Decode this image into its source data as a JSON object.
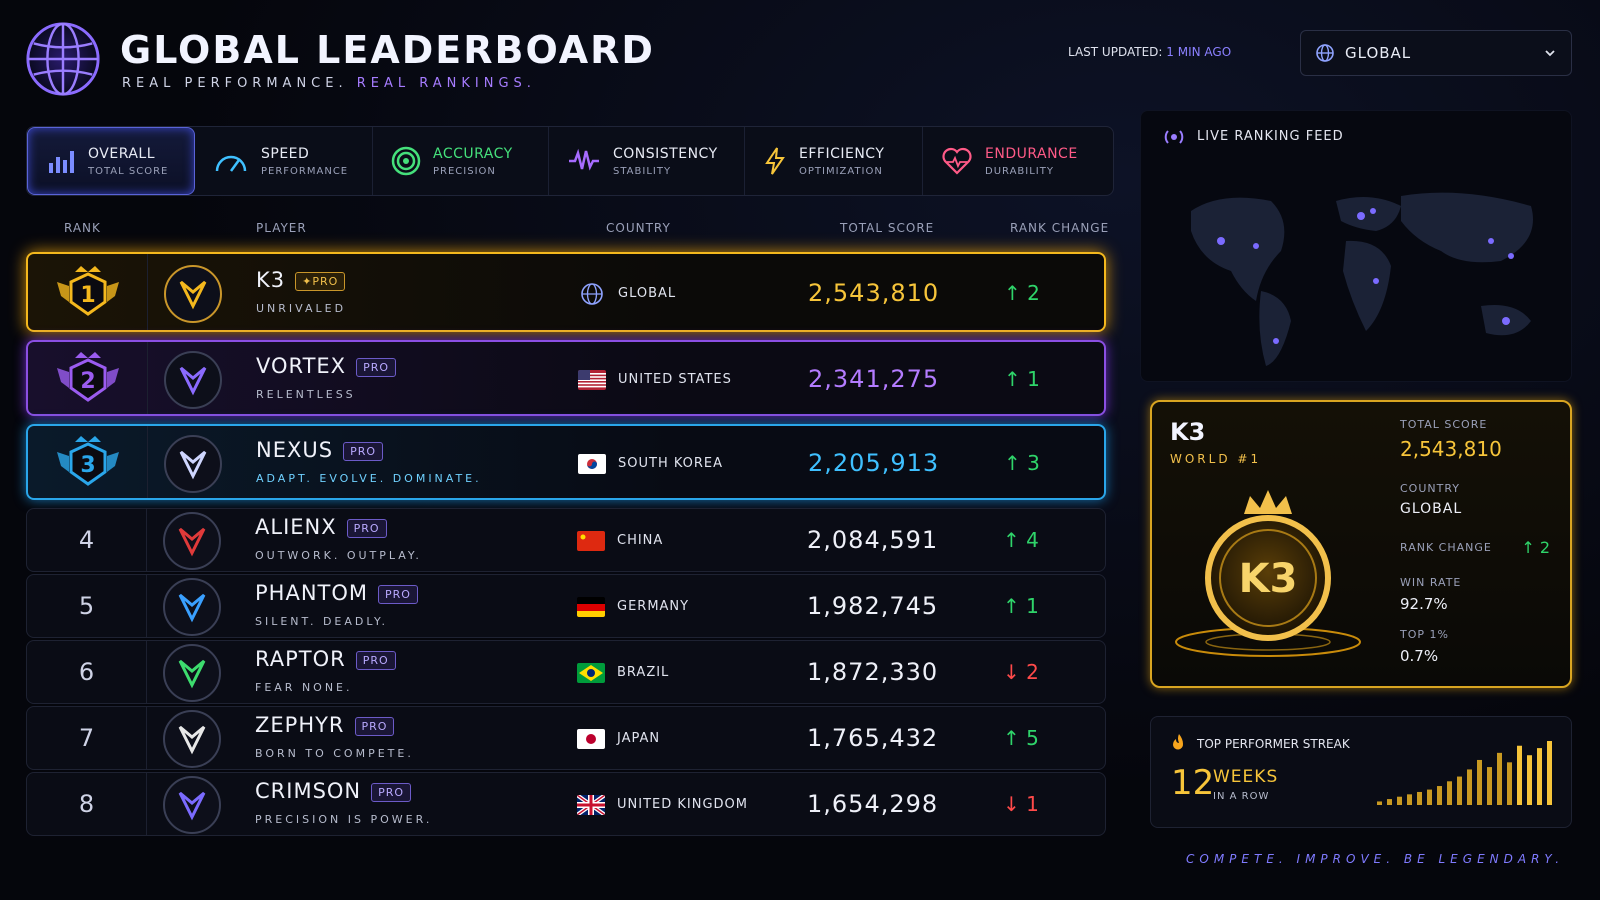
{
  "header": {
    "title": "GLOBAL LEADERBOARD",
    "subtitle_a": "REAL PERFORMANCE.",
    "subtitle_b": "REAL RANKINGS.",
    "updated_label": "LAST UPDATED:",
    "updated_value": "1 MIN AGO",
    "region": "GLOBAL"
  },
  "tabs": [
    {
      "name": "OVERALL",
      "sub": "TOTAL SCORE",
      "color": "#ffffff"
    },
    {
      "name": "SPEED",
      "sub": "PERFORMANCE",
      "color": "#ffffff"
    },
    {
      "name": "ACCURACY",
      "sub": "PRECISION",
      "color": "#45e07b"
    },
    {
      "name": "CONSISTENCY",
      "sub": "STABILITY",
      "color": "#ffffff"
    },
    {
      "name": "EFFICIENCY",
      "sub": "OPTIMIZATION",
      "color": "#ffffff"
    },
    {
      "name": "ENDURANCE",
      "sub": "DURABILITY",
      "color": "#ff5a87"
    }
  ],
  "columns": {
    "rank": "RANK",
    "player": "PLAYER",
    "country": "COUNTRY",
    "score": "TOTAL SCORE",
    "change": "RANK CHANGE"
  },
  "players": [
    {
      "rank": "1",
      "name": "K3",
      "pro": "✦PRO",
      "tag": "UNRIVALED",
      "country": "GLOBAL",
      "score": "2,543,810",
      "dir": "up",
      "change": "2",
      "score_color": "#f7c53a"
    },
    {
      "rank": "2",
      "name": "VORTEX",
      "pro": "PRO",
      "tag": "RELENTLESS",
      "country": "UNITED STATES",
      "score": "2,341,275",
      "dir": "up",
      "change": "1",
      "score_color": "#b47cff"
    },
    {
      "rank": "3",
      "name": "NEXUS",
      "pro": "PRO",
      "tag": "ADAPT. EVOLVE. DOMINATE.",
      "country": "SOUTH KOREA",
      "score": "2,205,913",
      "dir": "up",
      "change": "3",
      "score_color": "#3fc0ff"
    },
    {
      "rank": "4",
      "name": "ALIENX",
      "pro": "PRO",
      "tag": "OUTWORK. OUTPLAY.",
      "country": "CHINA",
      "score": "2,084,591",
      "dir": "up",
      "change": "4",
      "score_color": "#eef0f8"
    },
    {
      "rank": "5",
      "name": "PHANTOM",
      "pro": "PRO",
      "tag": "SILENT. DEADLY.",
      "country": "GERMANY",
      "score": "1,982,745",
      "dir": "up",
      "change": "1",
      "score_color": "#eef0f8"
    },
    {
      "rank": "6",
      "name": "RAPTOR",
      "pro": "PRO",
      "tag": "FEAR NONE.",
      "country": "BRAZIL",
      "score": "1,872,330",
      "dir": "down",
      "change": "2",
      "score_color": "#eef0f8"
    },
    {
      "rank": "7",
      "name": "ZEPHYR",
      "pro": "PRO",
      "tag": "BORN TO COMPETE.",
      "country": "JAPAN",
      "score": "1,765,432",
      "dir": "up",
      "change": "5",
      "score_color": "#eef0f8"
    },
    {
      "rank": "8",
      "name": "CRIMSON",
      "pro": "PRO",
      "tag": "PRECISION IS POWER.",
      "country": "UNITED KINGDOM",
      "score": "1,654,298",
      "dir": "down",
      "change": "1",
      "score_color": "#eef0f8"
    }
  ],
  "feed": {
    "title": "LIVE RANKING FEED"
  },
  "card": {
    "name": "K3",
    "world": "WORLD #1",
    "badge": "K3",
    "total_label": "TOTAL SCORE",
    "total": "2,543,810",
    "country_label": "COUNTRY",
    "country": "GLOBAL",
    "change_label": "RANK CHANGE",
    "change": "2",
    "win_label": "WIN RATE",
    "win": "92.7%",
    "top_label": "TOP 1%",
    "top": "0.7%"
  },
  "streak": {
    "title": "TOP PERFORMER STREAK",
    "value": "12",
    "unit": "WEEKS",
    "sub": "IN A ROW",
    "bars": [
      3,
      5,
      7,
      9,
      11,
      13,
      16,
      20,
      24,
      30,
      38,
      32,
      44,
      36,
      50,
      42,
      48,
      54
    ]
  },
  "footer": "COMPETE. IMPROVE. BE LEGENDARY."
}
